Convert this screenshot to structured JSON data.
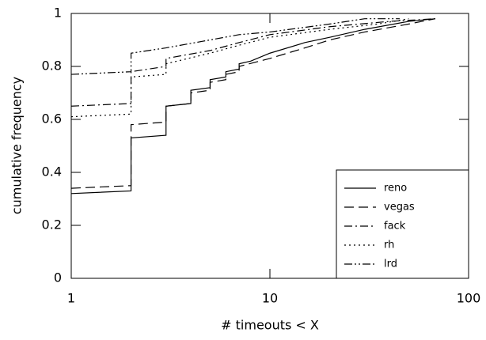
{
  "chart_data": {
    "type": "line",
    "xlabel": "# timeouts < X",
    "ylabel": "cumulative frequency",
    "xscale": "log",
    "xlim": [
      1,
      100
    ],
    "xticks": [
      1,
      10,
      100
    ],
    "ylim": [
      0,
      1
    ],
    "yticks": [
      0,
      0.2,
      0.4,
      0.6,
      0.8,
      1
    ],
    "legend": "lower right",
    "series": [
      {
        "name": "reno",
        "color": "#000000",
        "dash": "solid",
        "x": [
          1,
          2,
          2,
          3,
          3,
          4,
          4,
          5,
          5,
          6,
          6,
          7,
          7,
          8,
          10,
          15,
          20,
          30,
          50,
          68
        ],
        "values": [
          0.32,
          0.33,
          0.53,
          0.54,
          0.65,
          0.66,
          0.71,
          0.72,
          0.75,
          0.76,
          0.78,
          0.79,
          0.81,
          0.82,
          0.85,
          0.89,
          0.91,
          0.94,
          0.97,
          0.98
        ]
      },
      {
        "name": "vegas",
        "color": "#000000",
        "dash": "dashed",
        "x": [
          1,
          2,
          2,
          3,
          3,
          4,
          4,
          5,
          5,
          6,
          6,
          7,
          7,
          10,
          15,
          20,
          30,
          50,
          68
        ],
        "values": [
          0.34,
          0.35,
          0.58,
          0.59,
          0.65,
          0.66,
          0.7,
          0.71,
          0.74,
          0.75,
          0.77,
          0.78,
          0.8,
          0.83,
          0.87,
          0.9,
          0.93,
          0.96,
          0.98
        ]
      },
      {
        "name": "fack",
        "color": "#000000",
        "dash": "dashdot",
        "x": [
          1,
          2,
          2,
          3,
          3,
          5,
          7,
          10,
          20,
          40,
          68
        ],
        "values": [
          0.65,
          0.66,
          0.78,
          0.8,
          0.83,
          0.86,
          0.89,
          0.92,
          0.95,
          0.97,
          0.98
        ]
      },
      {
        "name": "rh",
        "color": "#000000",
        "dash": "dotted",
        "x": [
          1,
          2,
          2,
          3,
          3,
          5,
          7,
          10,
          20,
          35,
          50
        ],
        "values": [
          0.61,
          0.62,
          0.76,
          0.77,
          0.81,
          0.85,
          0.88,
          0.91,
          0.94,
          0.96,
          0.98
        ]
      },
      {
        "name": "lrd",
        "color": "#000000",
        "dash": "dashdotdot",
        "x": [
          1,
          2,
          2,
          3,
          5,
          7,
          10,
          20,
          30,
          45
        ],
        "values": [
          0.77,
          0.78,
          0.85,
          0.87,
          0.9,
          0.92,
          0.93,
          0.96,
          0.98,
          0.98
        ]
      }
    ]
  }
}
